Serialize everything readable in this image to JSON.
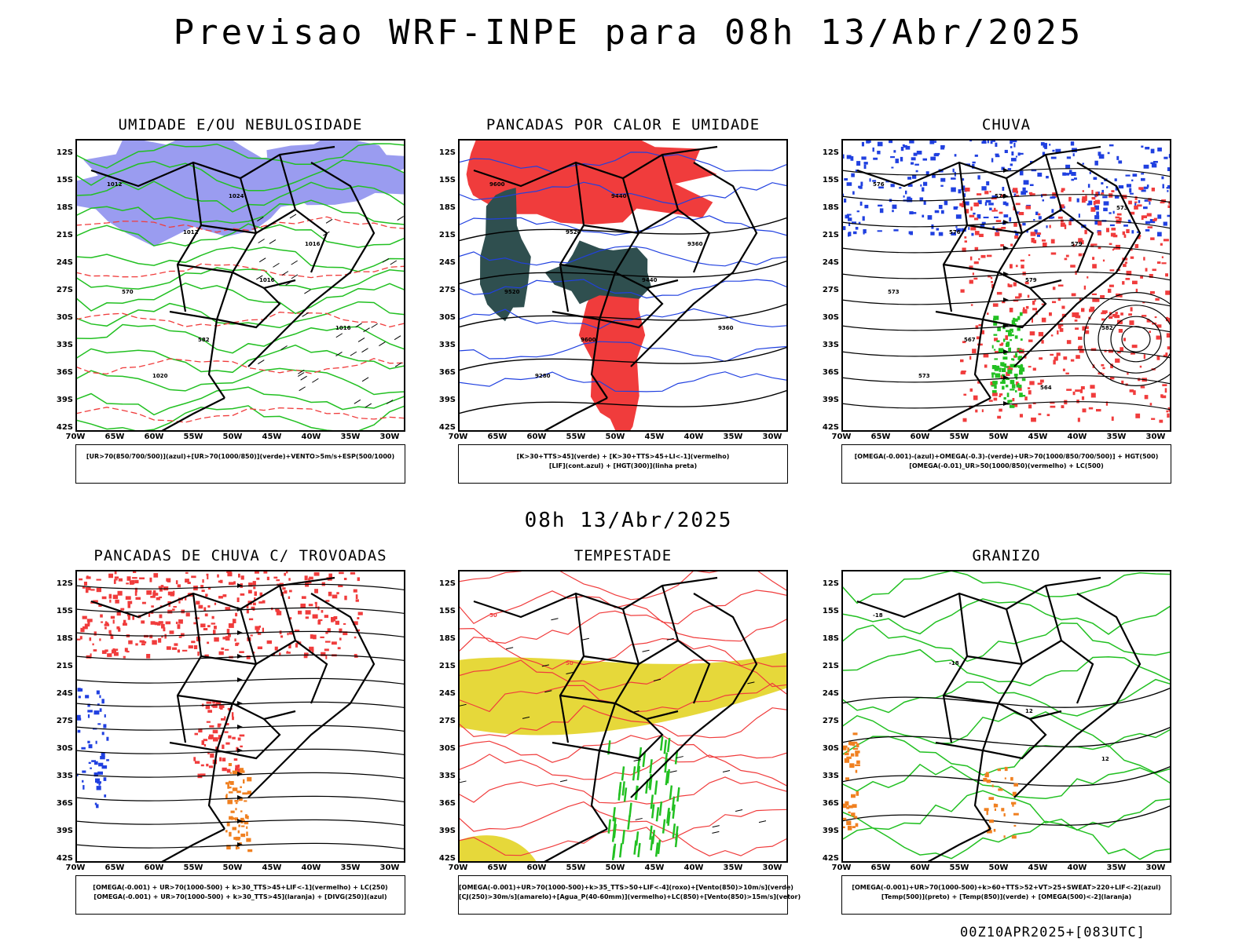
{
  "title": "Previsao WRF-INPE  para 08h 13/Abr/2025",
  "mid_title": "08h 13/Abr/2025",
  "run_stamp": "00Z10APR2025+[083UTC]",
  "axes": {
    "lat_labels": [
      "12S",
      "15S",
      "18S",
      "21S",
      "24S",
      "27S",
      "30S",
      "33S",
      "36S",
      "39S",
      "42S"
    ],
    "lon_labels": [
      "70W",
      "65W",
      "60W",
      "55W",
      "50W",
      "45W",
      "40W",
      "35W",
      "30W"
    ]
  },
  "panels": [
    {
      "title": "UMIDADE E/OU NEBULOSIDADE",
      "legend": [
        "[UR>70(850/700/500)](azul)+[UR>70(1000/850)](verde)+VENTO>5m/s+ESP(500/1000)"
      ],
      "contour_labels": [
        "1012",
        "1012",
        "1016",
        "1016",
        "1020",
        "1024",
        "1016",
        "570",
        "582"
      ]
    },
    {
      "title": "PANCADAS POR CALOR E UMIDADE",
      "legend": [
        "[K>30+TTS>45](verde) + [K>30+TTS>45+LI<-1](vermelho)",
        "[LIF](cont.azul) + [HGT(300)](linha preta)"
      ],
      "contour_labels": [
        "9600",
        "9520",
        "9440",
        "9360",
        "9280",
        "9440",
        "9360",
        "9520",
        "9600"
      ]
    },
    {
      "title": "CHUVA",
      "legend": [
        "[OMEGA(-0.001)-(azul)+OMEGA(-0.3)-(verde)+UR>70(1000/850/700/500)] + HGT(500)",
        "[OMEGA(-0.01)_UR>50(1000/850)(vermelho) + LC(500)"
      ],
      "contour_labels": [
        "576",
        "576",
        "579",
        "582",
        "573",
        "576",
        "579",
        "573",
        "567",
        "564",
        "573"
      ]
    },
    {
      "title": "PANCADAS DE CHUVA C/ TROVOADAS",
      "legend": [
        "[OMEGA(-0.001) + UR>70(1000-500) + k>30_TTS>45+LIF<-1](vermelho) + LC(250)",
        "[OMEGA(-0.001) + UR>70(1000-500) + k>30_TTS>45](laranja) + [DIVG(250)](azul)"
      ],
      "contour_labels": []
    },
    {
      "title": "TEMPESTADE",
      "legend": [
        "[OMEGA(-0.001)+UR>70(1000-500)+k>35_TTS>50+LIF<-4](roxo)+[Vento(850)>10m/s](verde)",
        "[CJ(250)>30m/s](amarelo)+[Agua_P(40-60mm)](vermelho)+LC(850)+[Vento(850)>15m/s](vetor)"
      ],
      "contour_labels": [
        "50",
        "50"
      ]
    },
    {
      "title": "GRANIZO",
      "legend": [
        "[OMEGA(-0.001)+UR>70(1000-500)+k>60+TTS>52+VT>25+SWEAT>220+LIF<-2](azul)",
        "[Temp(500)](preto) + [Temp(850)](verde) + [OMEGA(500)<-2](laranja)"
      ],
      "contour_labels": [
        "-18",
        "-18",
        "12",
        "12"
      ]
    }
  ],
  "colors": {
    "blue_fill": "#9a9cf0",
    "green": "#22c022",
    "red": "#f03c3c",
    "dark_teal": "#2f4f4f",
    "yellow": "#e6d83a",
    "orange": "#f08020",
    "blue": "#2040e0"
  }
}
